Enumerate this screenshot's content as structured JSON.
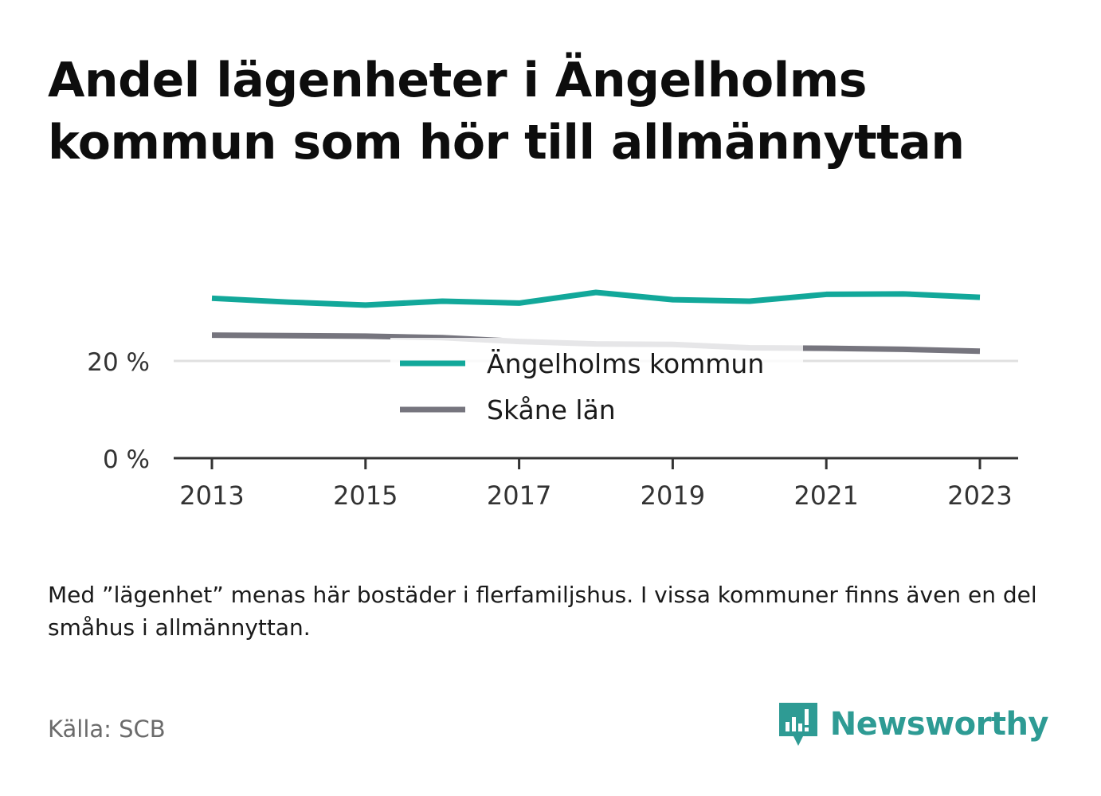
{
  "title": "Andel lägenheter i Ängelholms kommun som hör till allmännyttan",
  "note": "Med ”lägenhet” menas här bostäder i flerfamiljshus. I vissa kommuner finns även en del småhus i allmännyttan.",
  "source": "Källa: SCB",
  "brand": {
    "name": "Newsworthy",
    "logo_icon": "newsworthy-logo-icon",
    "color": "#2e9b94"
  },
  "chart_data": {
    "type": "line",
    "x": [
      2013,
      2014,
      2015,
      2016,
      2017,
      2018,
      2019,
      2020,
      2021,
      2022,
      2023
    ],
    "x_ticks": [
      "2013",
      "2015",
      "2017",
      "2019",
      "2021",
      "2023"
    ],
    "y_ticks": [
      "0 %",
      "20 %"
    ],
    "ylim": [
      0,
      40
    ],
    "grid": true,
    "legend_position": "center",
    "series": [
      {
        "name": "Ängelholms kommun",
        "color": "#12a89a",
        "values": [
          32.9,
          32.1,
          31.5,
          32.3,
          31.9,
          34.1,
          32.6,
          32.3,
          33.7,
          33.8,
          33.1
        ]
      },
      {
        "name": "Skåne län",
        "color": "#76757e",
        "values": [
          25.3,
          25.2,
          25.1,
          24.8,
          24.0,
          23.5,
          23.4,
          22.7,
          22.6,
          22.4,
          22.0
        ]
      }
    ]
  }
}
